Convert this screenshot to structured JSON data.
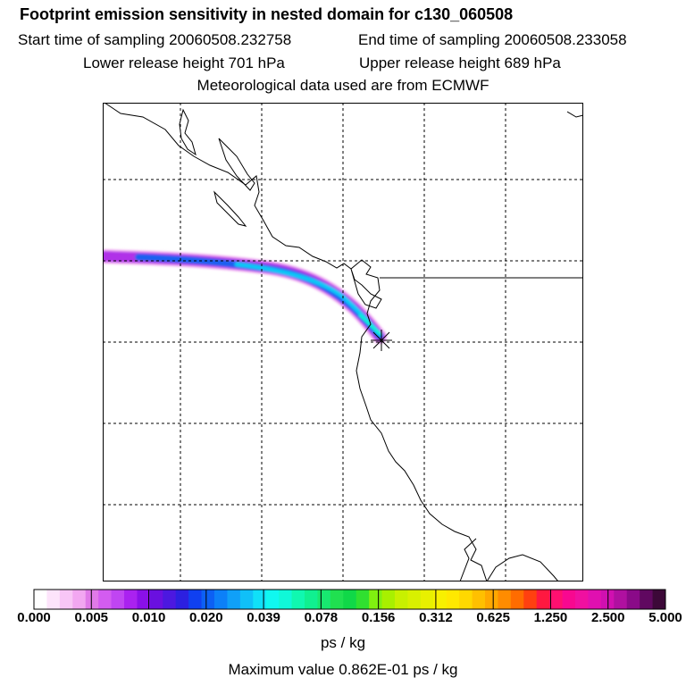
{
  "header": {
    "title": "Footprint emission sensitivity in nested domain for c130_060508",
    "start_time": "Start time of sampling 20060508.232758",
    "end_time": "End time of sampling 20060508.233058",
    "lower_release": "Lower release height  701 hPa",
    "upper_release": "Upper release height  689 hPa",
    "met_data": "Meteorological data used are from ECMWF"
  },
  "map": {
    "coastline_color": "#000000",
    "grid_style": "dashed",
    "release_marker": "asterisk-marker"
  },
  "colorbar": {
    "tick_labels": [
      "0.000",
      "0.005",
      "0.010",
      "0.020",
      "0.039",
      "0.078",
      "0.156",
      "0.312",
      "0.625",
      "1.250",
      "2.500",
      "5.000"
    ],
    "colors": [
      "#ffffff",
      "#fde4fb",
      "#f8c6f6",
      "#f2a7f1",
      "#e07ae8",
      "#d35cf0",
      "#c045f2",
      "#aa22f0",
      "#8a10e8",
      "#6a10e0",
      "#4c18e0",
      "#2c20e0",
      "#1040f0",
      "#0c60f4",
      "#0c80f8",
      "#10a0f8",
      "#10c0f8",
      "#10e0f8",
      "#10f8f0",
      "#10f8d8",
      "#10f8b0",
      "#10f090",
      "#18e870",
      "#20e050",
      "#10d848",
      "#30e030",
      "#80f010",
      "#a8f000",
      "#c8f000",
      "#d8f000",
      "#e8f000",
      "#f8f000",
      "#ffe800",
      "#ffd800",
      "#ffc000",
      "#ffa800",
      "#ff8c00",
      "#ff6c00",
      "#ff4010",
      "#ff1840",
      "#ff1070",
      "#f80890",
      "#f010a0",
      "#e010b0",
      "#d010b0",
      "#b010a0",
      "#8a0a88",
      "#600860",
      "#3c0838"
    ],
    "unit": "ps / kg"
  },
  "footer": {
    "max_value": "Maximum value  0.862E-01 ps / kg"
  }
}
